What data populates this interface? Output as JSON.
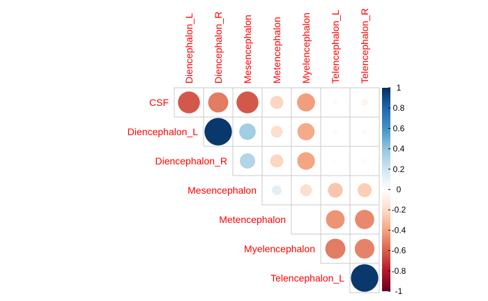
{
  "chart_data": {
    "type": "heatmap",
    "subtype": "correlation-upper-triangle-circles",
    "columns": [
      "Diencephalon_L",
      "Diencephalon_R",
      "Mesencephalon",
      "Metencephalon",
      "Myelencephalon",
      "Telencephalon_L",
      "Telencephalon_R"
    ],
    "rows": [
      "CSF",
      "Diencephalon_L",
      "Diencephalon_R",
      "Mesencephalon",
      "Metencephalon",
      "Myelencephalon",
      "Telencephalon_L"
    ],
    "values": [
      [
        -0.62,
        -0.52,
        -0.62,
        -0.22,
        -0.42,
        -0.03,
        -0.06
      ],
      [
        null,
        0.97,
        0.35,
        -0.18,
        -0.38,
        -0.03,
        -0.04
      ],
      [
        null,
        null,
        0.3,
        -0.22,
        -0.4,
        -0.02,
        -0.03
      ],
      [
        null,
        null,
        null,
        0.12,
        -0.18,
        -0.28,
        -0.25
      ],
      [
        null,
        null,
        null,
        null,
        0.0,
        -0.45,
        -0.48
      ],
      [
        null,
        null,
        null,
        null,
        null,
        -0.52,
        -0.5
      ],
      [
        null,
        null,
        null,
        null,
        null,
        null,
        0.97
      ]
    ],
    "colorbar": {
      "ticks": [
        "1",
        "0.8",
        "0.6",
        "0.4",
        "0.2",
        "0",
        "-0.2",
        "-0.4",
        "-0.6",
        "-0.8",
        "-1"
      ],
      "range": [
        -1,
        1
      ],
      "colors": [
        "#67001f",
        "#b2182b",
        "#d6604d",
        "#f4a582",
        "#fddbc7",
        "#ffffff",
        "#d1e5f0",
        "#92c5de",
        "#4393c3",
        "#2166ac",
        "#053061"
      ]
    },
    "label_color": "#ff0000",
    "grid": true
  }
}
